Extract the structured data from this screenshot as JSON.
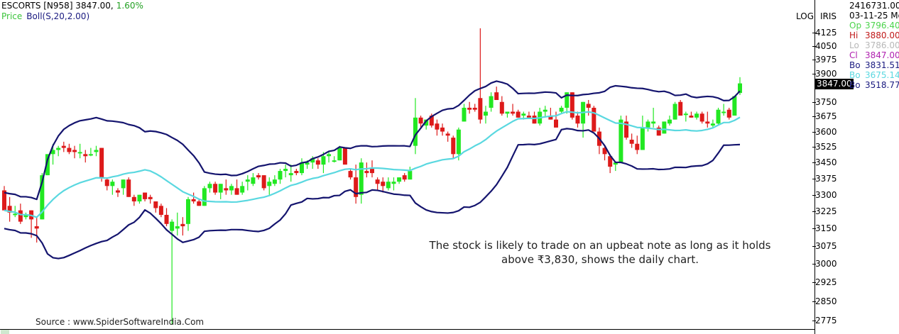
{
  "header": {
    "symbol": "ESCORTS [N958] 3847.00,",
    "change_pct": "1.60%",
    "series_label": "Price",
    "indicator_label": "Boll(S,20,2.00)"
  },
  "scale": {
    "log_label": "LOG",
    "iris_label": "IRIS",
    "last_price": "3847.00"
  },
  "info_panel": {
    "volume": "2416731.00",
    "date": "03-11-25 Mo",
    "rows": [
      {
        "key": "Op",
        "value": "3796.40",
        "color": "#4cd44c"
      },
      {
        "key": "Hi",
        "value": "3880.00",
        "color": "#c01818"
      },
      {
        "key": "Lo",
        "value": "3786.00",
        "color": "#b8b8b8"
      },
      {
        "key": "Cl",
        "value": "3847.00",
        "color": "#b020b0"
      },
      {
        "key": "Bo",
        "value": "3831.51",
        "color": "#1a1a80"
      },
      {
        "key": "Bo",
        "value": "3675.14",
        "color": "#5ad8e0"
      },
      {
        "key": "Bo",
        "value": "3518.77",
        "color": "#1a1a80"
      }
    ]
  },
  "annotation": {
    "line1": "The stock is likely to trade on an upbeat note as long as it holds",
    "line2": "above ₹3,830, shows the daily chart."
  },
  "source": "Source : www.SpiderSoftwareIndia.Com",
  "chart_data": {
    "type": "candlestick",
    "title": "ESCORTS [N958] 3847.00, 1.60%",
    "subtitle": "Price Boll(S,20,2.00)",
    "yscale": "log",
    "ylim": [
      2750,
      4250
    ],
    "yticks": [
      4125,
      4050,
      3975,
      3900,
      3750,
      3675,
      3600,
      3525,
      3450,
      3375,
      3300,
      3225,
      3150,
      3075,
      3000,
      2925,
      2850,
      2775
    ],
    "colors": {
      "up": "#22e822",
      "down": "#dd1a1a",
      "band_outer": "#14146e",
      "band_mid": "#5ad8e0"
    },
    "candles": [
      [
        3320,
        3340,
        3260,
        3230
      ],
      [
        3250,
        3290,
        3180,
        3220
      ],
      [
        3210,
        3250,
        3200,
        3215
      ],
      [
        3230,
        3260,
        3170,
        3180
      ],
      [
        3200,
        3220,
        3190,
        3210
      ],
      [
        3230,
        3230,
        3110,
        3190
      ],
      [
        3160,
        3200,
        3090,
        3150
      ],
      [
        3190,
        3400,
        3190,
        3390
      ],
      [
        3390,
        3470,
        3390,
        3490
      ],
      [
        3490,
        3540,
        3440,
        3510
      ],
      [
        3510,
        3530,
        3480,
        3520
      ],
      [
        3530,
        3550,
        3500,
        3520
      ],
      [
        3520,
        3540,
        3490,
        3500
      ],
      [
        3510,
        3530,
        3470,
        3500
      ],
      [
        3500,
        3540,
        3470,
        3500
      ],
      [
        3490,
        3510,
        3450,
        3480
      ],
      [
        3490,
        3520,
        3480,
        3490
      ],
      [
        3500,
        3530,
        3480,
        3510
      ],
      [
        3520,
        3520,
        3360,
        3380
      ],
      [
        3370,
        3380,
        3320,
        3340
      ],
      [
        3340,
        3370,
        3300,
        3360
      ],
      [
        3320,
        3330,
        3290,
        3310
      ],
      [
        3330,
        3370,
        3300,
        3370
      ],
      [
        3370,
        3380,
        3290,
        3290
      ],
      [
        3290,
        3300,
        3250,
        3270
      ],
      [
        3270,
        3300,
        3260,
        3300
      ],
      [
        3310,
        3310,
        3270,
        3280
      ],
      [
        3290,
        3300,
        3260,
        3280
      ],
      [
        3270,
        3270,
        3220,
        3240
      ],
      [
        3250,
        3260,
        3200,
        3210
      ],
      [
        3210,
        3240,
        3160,
        3170
      ],
      [
        3140,
        3190,
        2760,
        3180
      ],
      [
        3150,
        3220,
        3120,
        3160
      ],
      [
        3170,
        3200,
        3120,
        3160
      ],
      [
        3170,
        3290,
        3140,
        3280
      ],
      [
        3280,
        3310,
        3260,
        3270
      ],
      [
        3270,
        3280,
        3250,
        3250
      ],
      [
        3250,
        3340,
        3250,
        3330
      ],
      [
        3330,
        3360,
        3310,
        3350
      ],
      [
        3350,
        3360,
        3300,
        3310
      ],
      [
        3310,
        3350,
        3280,
        3350
      ],
      [
        3330,
        3370,
        3300,
        3320
      ],
      [
        3320,
        3350,
        3300,
        3340
      ],
      [
        3330,
        3370,
        3300,
        3300
      ],
      [
        3310,
        3360,
        3300,
        3340
      ],
      [
        3360,
        3390,
        3320,
        3370
      ],
      [
        3350,
        3400,
        3340,
        3380
      ],
      [
        3390,
        3400,
        3370,
        3380
      ],
      [
        3390,
        3390,
        3320,
        3330
      ],
      [
        3340,
        3380,
        3300,
        3360
      ],
      [
        3350,
        3390,
        3340,
        3370
      ],
      [
        3370,
        3420,
        3350,
        3410
      ],
      [
        3410,
        3440,
        3380,
        3420
      ],
      [
        3390,
        3440,
        3360,
        3400
      ],
      [
        3410,
        3420,
        3390,
        3400
      ],
      [
        3400,
        3470,
        3390,
        3450
      ],
      [
        3440,
        3460,
        3420,
        3450
      ],
      [
        3450,
        3480,
        3420,
        3470
      ],
      [
        3460,
        3470,
        3420,
        3440
      ],
      [
        3440,
        3500,
        3400,
        3480
      ],
      [
        3480,
        3500,
        3450,
        3490
      ],
      [
        3460,
        3480,
        3450,
        3460
      ],
      [
        3460,
        3530,
        3460,
        3520
      ],
      [
        3520,
        3520,
        3440,
        3440
      ],
      [
        3410,
        3420,
        3370,
        3380
      ],
      [
        3380,
        3440,
        3260,
        3290
      ],
      [
        3300,
        3470,
        3260,
        3450
      ],
      [
        3410,
        3450,
        3380,
        3400
      ],
      [
        3420,
        3460,
        3380,
        3400
      ],
      [
        3370,
        3380,
        3320,
        3350
      ],
      [
        3360,
        3380,
        3310,
        3340
      ],
      [
        3330,
        3380,
        3320,
        3360
      ],
      [
        3350,
        3380,
        3320,
        3360
      ],
      [
        3360,
        3380,
        3350,
        3380
      ],
      [
        3390,
        3400,
        3360,
        3370
      ],
      [
        3370,
        3430,
        3370,
        3410
      ],
      [
        3530,
        3770,
        3490,
        3670
      ],
      [
        3670,
        3680,
        3620,
        3640
      ],
      [
        3630,
        3660,
        3610,
        3660
      ],
      [
        3680,
        3690,
        3620,
        3630
      ],
      [
        3640,
        3660,
        3580,
        3610
      ],
      [
        3620,
        3640,
        3580,
        3600
      ],
      [
        3590,
        3600,
        3550,
        3580
      ],
      [
        3570,
        3580,
        3470,
        3490
      ],
      [
        3490,
        3620,
        3460,
        3610
      ],
      [
        3650,
        3740,
        3650,
        3720
      ],
      [
        3720,
        3750,
        3690,
        3710
      ],
      [
        3720,
        3740,
        3700,
        3710
      ],
      [
        3770,
        4150,
        3640,
        3660
      ],
      [
        3680,
        3730,
        3640,
        3700
      ],
      [
        3720,
        3800,
        3700,
        3780
      ],
      [
        3800,
        3830,
        3760,
        3760
      ],
      [
        3750,
        3780,
        3680,
        3690
      ],
      [
        3690,
        3700,
        3670,
        3700
      ],
      [
        3700,
        3740,
        3680,
        3690
      ],
      [
        3700,
        3710,
        3670,
        3670
      ],
      [
        3680,
        3700,
        3660,
        3690
      ],
      [
        3680,
        3700,
        3670,
        3670
      ],
      [
        3680,
        3700,
        3640,
        3640
      ],
      [
        3640,
        3720,
        3630,
        3700
      ],
      [
        3700,
        3730,
        3670,
        3710
      ],
      [
        3680,
        3720,
        3660,
        3660
      ],
      [
        3660,
        3700,
        3620,
        3620
      ],
      [
        3700,
        3730,
        3690,
        3720
      ],
      [
        3720,
        3800,
        3690,
        3800
      ],
      [
        3800,
        3800,
        3660,
        3670
      ],
      [
        3680,
        3700,
        3620,
        3640
      ],
      [
        3640,
        3750,
        3570,
        3750
      ],
      [
        3740,
        3760,
        3680,
        3720
      ],
      [
        3720,
        3730,
        3600,
        3600
      ],
      [
        3600,
        3620,
        3490,
        3530
      ],
      [
        3520,
        3530,
        3460,
        3490
      ],
      [
        3480,
        3490,
        3400,
        3430
      ],
      [
        3440,
        3450,
        3410,
        3450
      ],
      [
        3450,
        3680,
        3450,
        3660
      ],
      [
        3650,
        3680,
        3560,
        3570
      ],
      [
        3560,
        3590,
        3520,
        3540
      ],
      [
        3540,
        3580,
        3490,
        3510
      ],
      [
        3510,
        3680,
        3510,
        3620
      ],
      [
        3620,
        3660,
        3600,
        3650
      ],
      [
        3640,
        3720,
        3620,
        3650
      ],
      [
        3620,
        3630,
        3580,
        3580
      ],
      [
        3590,
        3650,
        3590,
        3650
      ],
      [
        3640,
        3680,
        3630,
        3660
      ],
      [
        3660,
        3750,
        3660,
        3740
      ],
      [
        3750,
        3760,
        3680,
        3680
      ],
      [
        3690,
        3700,
        3650,
        3690
      ],
      [
        3680,
        3700,
        3670,
        3670
      ],
      [
        3670,
        3700,
        3660,
        3690
      ],
      [
        3690,
        3700,
        3640,
        3650
      ],
      [
        3650,
        3700,
        3620,
        3640
      ],
      [
        3630,
        3660,
        3620,
        3640
      ],
      [
        3640,
        3720,
        3630,
        3710
      ],
      [
        3700,
        3740,
        3680,
        3700
      ],
      [
        3710,
        3720,
        3660,
        3670
      ],
      [
        3680,
        3780,
        3680,
        3780
      ],
      [
        3796.4,
        3880,
        3786,
        3847
      ]
    ],
    "bands_note": "upper/middle/lower Bollinger bands drawn as smooth polylines (pixel-traced)",
    "last_values": {
      "upper": 3831.51,
      "middle": 3675.14,
      "lower": 3518.77
    }
  }
}
